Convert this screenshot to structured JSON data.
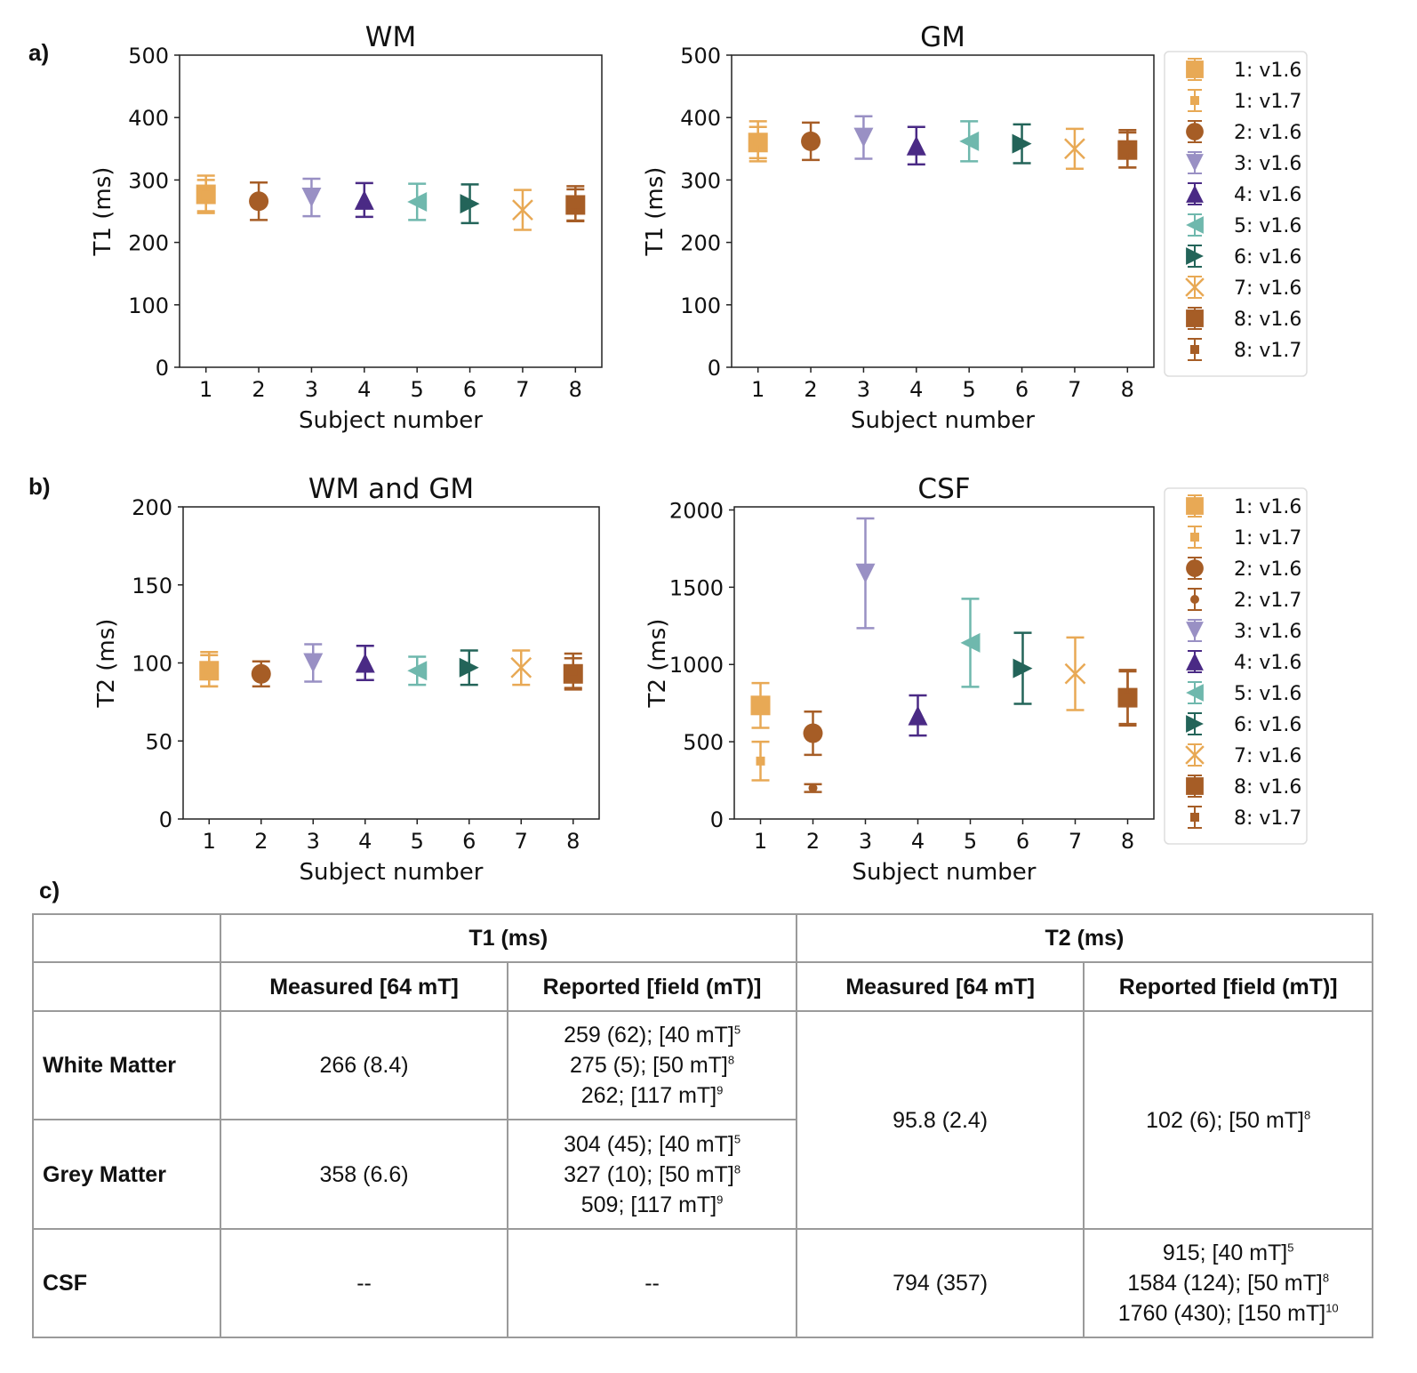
{
  "panel_labels": {
    "a": "a)",
    "b": "b)",
    "c": "c)"
  },
  "colors": {
    "s1": "#e8a955",
    "s2": "#a65d26",
    "s3": "#9990c4",
    "s4": "#4a2a85",
    "s5": "#6fb8ad",
    "s6": "#236459"
  },
  "chart_data": [
    {
      "type": "scatter",
      "title": "WM",
      "xlabel": "Subject number",
      "ylabel": "T1 (ms)",
      "xlim": [
        0.5,
        8.5
      ],
      "ylim": [
        0,
        500
      ],
      "xticks": [
        1,
        2,
        3,
        4,
        5,
        6,
        7,
        8
      ],
      "yticks": [
        0,
        100,
        200,
        300,
        400,
        500
      ],
      "legend": "none",
      "series": [
        {
          "name": "1: v1.6",
          "color": "#e8a955",
          "marker": "square",
          "x": 1,
          "y": 277,
          "err": 30
        },
        {
          "name": "1: v1.7",
          "color": "#e8a955",
          "marker": "small-square",
          "x": 1,
          "y": 275,
          "err": 25
        },
        {
          "name": "2: v1.6",
          "color": "#a65d26",
          "marker": "circle",
          "x": 2,
          "y": 266,
          "err": 30
        },
        {
          "name": "3: v1.6",
          "color": "#9990c4",
          "marker": "triangle-down",
          "x": 3,
          "y": 272,
          "err": 30
        },
        {
          "name": "4: v1.6",
          "color": "#4a2a85",
          "marker": "triangle-up",
          "x": 4,
          "y": 268,
          "err": 27
        },
        {
          "name": "5: v1.6",
          "color": "#6fb8ad",
          "marker": "triangle-left",
          "x": 5,
          "y": 265,
          "err": 29
        },
        {
          "name": "6: v1.6",
          "color": "#236459",
          "marker": "triangle-right",
          "x": 6,
          "y": 262,
          "err": 31
        },
        {
          "name": "7: v1.6",
          "color": "#e8a955",
          "marker": "x",
          "x": 7,
          "y": 252,
          "err": 32
        },
        {
          "name": "8: v1.6",
          "color": "#a65d26",
          "marker": "square",
          "x": 8,
          "y": 260,
          "err": 25
        },
        {
          "name": "8: v1.7",
          "color": "#a65d26",
          "marker": "small-square",
          "x": 8,
          "y": 262,
          "err": 28
        }
      ]
    },
    {
      "type": "scatter",
      "title": "GM",
      "xlabel": "Subject number",
      "ylabel": "T1 (ms)",
      "xlim": [
        0.5,
        8.5
      ],
      "ylim": [
        0,
        500
      ],
      "xticks": [
        1,
        2,
        3,
        4,
        5,
        6,
        7,
        8
      ],
      "yticks": [
        0,
        100,
        200,
        300,
        400,
        500
      ],
      "legend": "right",
      "series": [
        {
          "name": "1: v1.6",
          "color": "#e8a955",
          "marker": "square",
          "x": 1,
          "y": 360,
          "err": 25
        },
        {
          "name": "1: v1.7",
          "color": "#e8a955",
          "marker": "small-square",
          "x": 1,
          "y": 362,
          "err": 32
        },
        {
          "name": "2: v1.6",
          "color": "#a65d26",
          "marker": "circle",
          "x": 2,
          "y": 362,
          "err": 30
        },
        {
          "name": "3: v1.6",
          "color": "#9990c4",
          "marker": "triangle-down",
          "x": 3,
          "y": 368,
          "err": 34
        },
        {
          "name": "4: v1.6",
          "color": "#4a2a85",
          "marker": "triangle-up",
          "x": 4,
          "y": 355,
          "err": 30
        },
        {
          "name": "5: v1.6",
          "color": "#6fb8ad",
          "marker": "triangle-left",
          "x": 5,
          "y": 362,
          "err": 32
        },
        {
          "name": "6: v1.6",
          "color": "#236459",
          "marker": "triangle-right",
          "x": 6,
          "y": 358,
          "err": 31
        },
        {
          "name": "7: v1.6",
          "color": "#e8a955",
          "marker": "x",
          "x": 7,
          "y": 350,
          "err": 32
        },
        {
          "name": "8: v1.6",
          "color": "#a65d26",
          "marker": "square",
          "x": 8,
          "y": 348,
          "err": 28
        },
        {
          "name": "8: v1.7",
          "color": "#a65d26",
          "marker": "small-square",
          "x": 8,
          "y": 350,
          "err": 30
        }
      ]
    },
    {
      "type": "scatter",
      "title": "WM and GM",
      "xlabel": "Subject number",
      "ylabel": "T2 (ms)",
      "xlim": [
        0.5,
        8.5
      ],
      "ylim": [
        0,
        200
      ],
      "xticks": [
        1,
        2,
        3,
        4,
        5,
        6,
        7,
        8
      ],
      "yticks": [
        0,
        50,
        100,
        150,
        200
      ],
      "legend": "none",
      "series": [
        {
          "name": "1: v1.6",
          "color": "#e8a955",
          "marker": "square",
          "x": 1,
          "y": 95,
          "err": 10
        },
        {
          "name": "1: v1.7",
          "color": "#e8a955",
          "marker": "small-square",
          "x": 1,
          "y": 96,
          "err": 11
        },
        {
          "name": "2: v1.6",
          "color": "#a65d26",
          "marker": "circle",
          "x": 2,
          "y": 93,
          "err": 8
        },
        {
          "name": "3: v1.6",
          "color": "#9990c4",
          "marker": "triangle-down",
          "x": 3,
          "y": 100,
          "err": 12
        },
        {
          "name": "4: v1.6",
          "color": "#4a2a85",
          "marker": "triangle-up",
          "x": 4,
          "y": 100,
          "err": 11
        },
        {
          "name": "5: v1.6",
          "color": "#6fb8ad",
          "marker": "triangle-left",
          "x": 5,
          "y": 95,
          "err": 9
        },
        {
          "name": "6: v1.6",
          "color": "#236459",
          "marker": "triangle-right",
          "x": 6,
          "y": 97,
          "err": 11
        },
        {
          "name": "7: v1.6",
          "color": "#e8a955",
          "marker": "x",
          "x": 7,
          "y": 97,
          "err": 11
        },
        {
          "name": "8: v1.6",
          "color": "#a65d26",
          "marker": "square",
          "x": 8,
          "y": 93,
          "err": 10
        },
        {
          "name": "8: v1.7",
          "color": "#a65d26",
          "marker": "small-square",
          "x": 8,
          "y": 95,
          "err": 11
        }
      ]
    },
    {
      "type": "scatter",
      "title": "CSF",
      "xlabel": "Subject number",
      "ylabel": "T2 (ms)",
      "xlim": [
        0.5,
        8.5
      ],
      "ylim": [
        0,
        2020
      ],
      "xticks": [
        1,
        2,
        3,
        4,
        5,
        6,
        7,
        8
      ],
      "yticks": [
        0,
        500,
        1000,
        1500,
        2000
      ],
      "legend": "right",
      "series": [
        {
          "name": "1: v1.6",
          "color": "#e8a955",
          "marker": "square",
          "x": 1,
          "y": 735,
          "err": 145
        },
        {
          "name": "1: v1.7",
          "color": "#e8a955",
          "marker": "small-square",
          "x": 1,
          "y": 375,
          "err": 125
        },
        {
          "name": "2: v1.6",
          "color": "#a65d26",
          "marker": "circle",
          "x": 2,
          "y": 555,
          "err": 140
        },
        {
          "name": "2: v1.7",
          "color": "#a65d26",
          "marker": "small-circle",
          "x": 2,
          "y": 200,
          "err": 25
        },
        {
          "name": "3: v1.6",
          "color": "#9990c4",
          "marker": "triangle-down",
          "x": 3,
          "y": 1590,
          "err": 355
        },
        {
          "name": "4: v1.6",
          "color": "#4a2a85",
          "marker": "triangle-up",
          "x": 4,
          "y": 670,
          "err": 130
        },
        {
          "name": "5: v1.6",
          "color": "#6fb8ad",
          "marker": "triangle-left",
          "x": 5,
          "y": 1140,
          "err": 285
        },
        {
          "name": "6: v1.6",
          "color": "#236459",
          "marker": "triangle-right",
          "x": 6,
          "y": 975,
          "err": 230
        },
        {
          "name": "7: v1.6",
          "color": "#e8a955",
          "marker": "x",
          "x": 7,
          "y": 940,
          "err": 235
        },
        {
          "name": "8: v1.6",
          "color": "#a65d26",
          "marker": "square",
          "x": 8,
          "y": 785,
          "err": 180
        },
        {
          "name": "8: v1.7",
          "color": "#a65d26",
          "marker": "small-square",
          "x": 8,
          "y": 785,
          "err": 170
        }
      ]
    }
  ],
  "table": {
    "header1": [
      "",
      "T1 (ms)",
      "T2 (ms)"
    ],
    "header2": [
      "",
      "Measured [64 mT]",
      "Reported [field (mT)]",
      "Measured [64 mT]",
      "Reported [field (mT)]"
    ],
    "wm": {
      "label": "White Matter",
      "t1_measured": "266 (8.4)",
      "t1_reported": [
        {
          "text": "259 (62); [40 mT]",
          "ref": "5"
        },
        {
          "text": "275 (5); [50 mT]",
          "ref": "8"
        },
        {
          "text": "262; [117 mT]",
          "ref": "9"
        }
      ]
    },
    "gm": {
      "label": "Grey Matter",
      "t1_measured": "358 (6.6)",
      "t1_reported": [
        {
          "text": "304 (45); [40 mT]",
          "ref": "5"
        },
        {
          "text": "327 (10); [50 mT]",
          "ref": "8"
        },
        {
          "text": "509; [117 mT]",
          "ref": "9"
        }
      ]
    },
    "wmgm_t2_measured": "95.8 (2.4)",
    "wmgm_t2_reported": {
      "text": "102 (6); [50 mT]",
      "ref": "8"
    },
    "csf": {
      "label": "CSF",
      "t1_measured": "--",
      "t1_reported": "--",
      "t2_measured": "794 (357)",
      "t2_reported": [
        {
          "text": "915; [40 mT]",
          "ref": "5"
        },
        {
          "text": "1584 (124); [50 mT]",
          "ref": "8"
        },
        {
          "text": "1760 (430); [150 mT]",
          "ref": "10"
        }
      ]
    }
  }
}
